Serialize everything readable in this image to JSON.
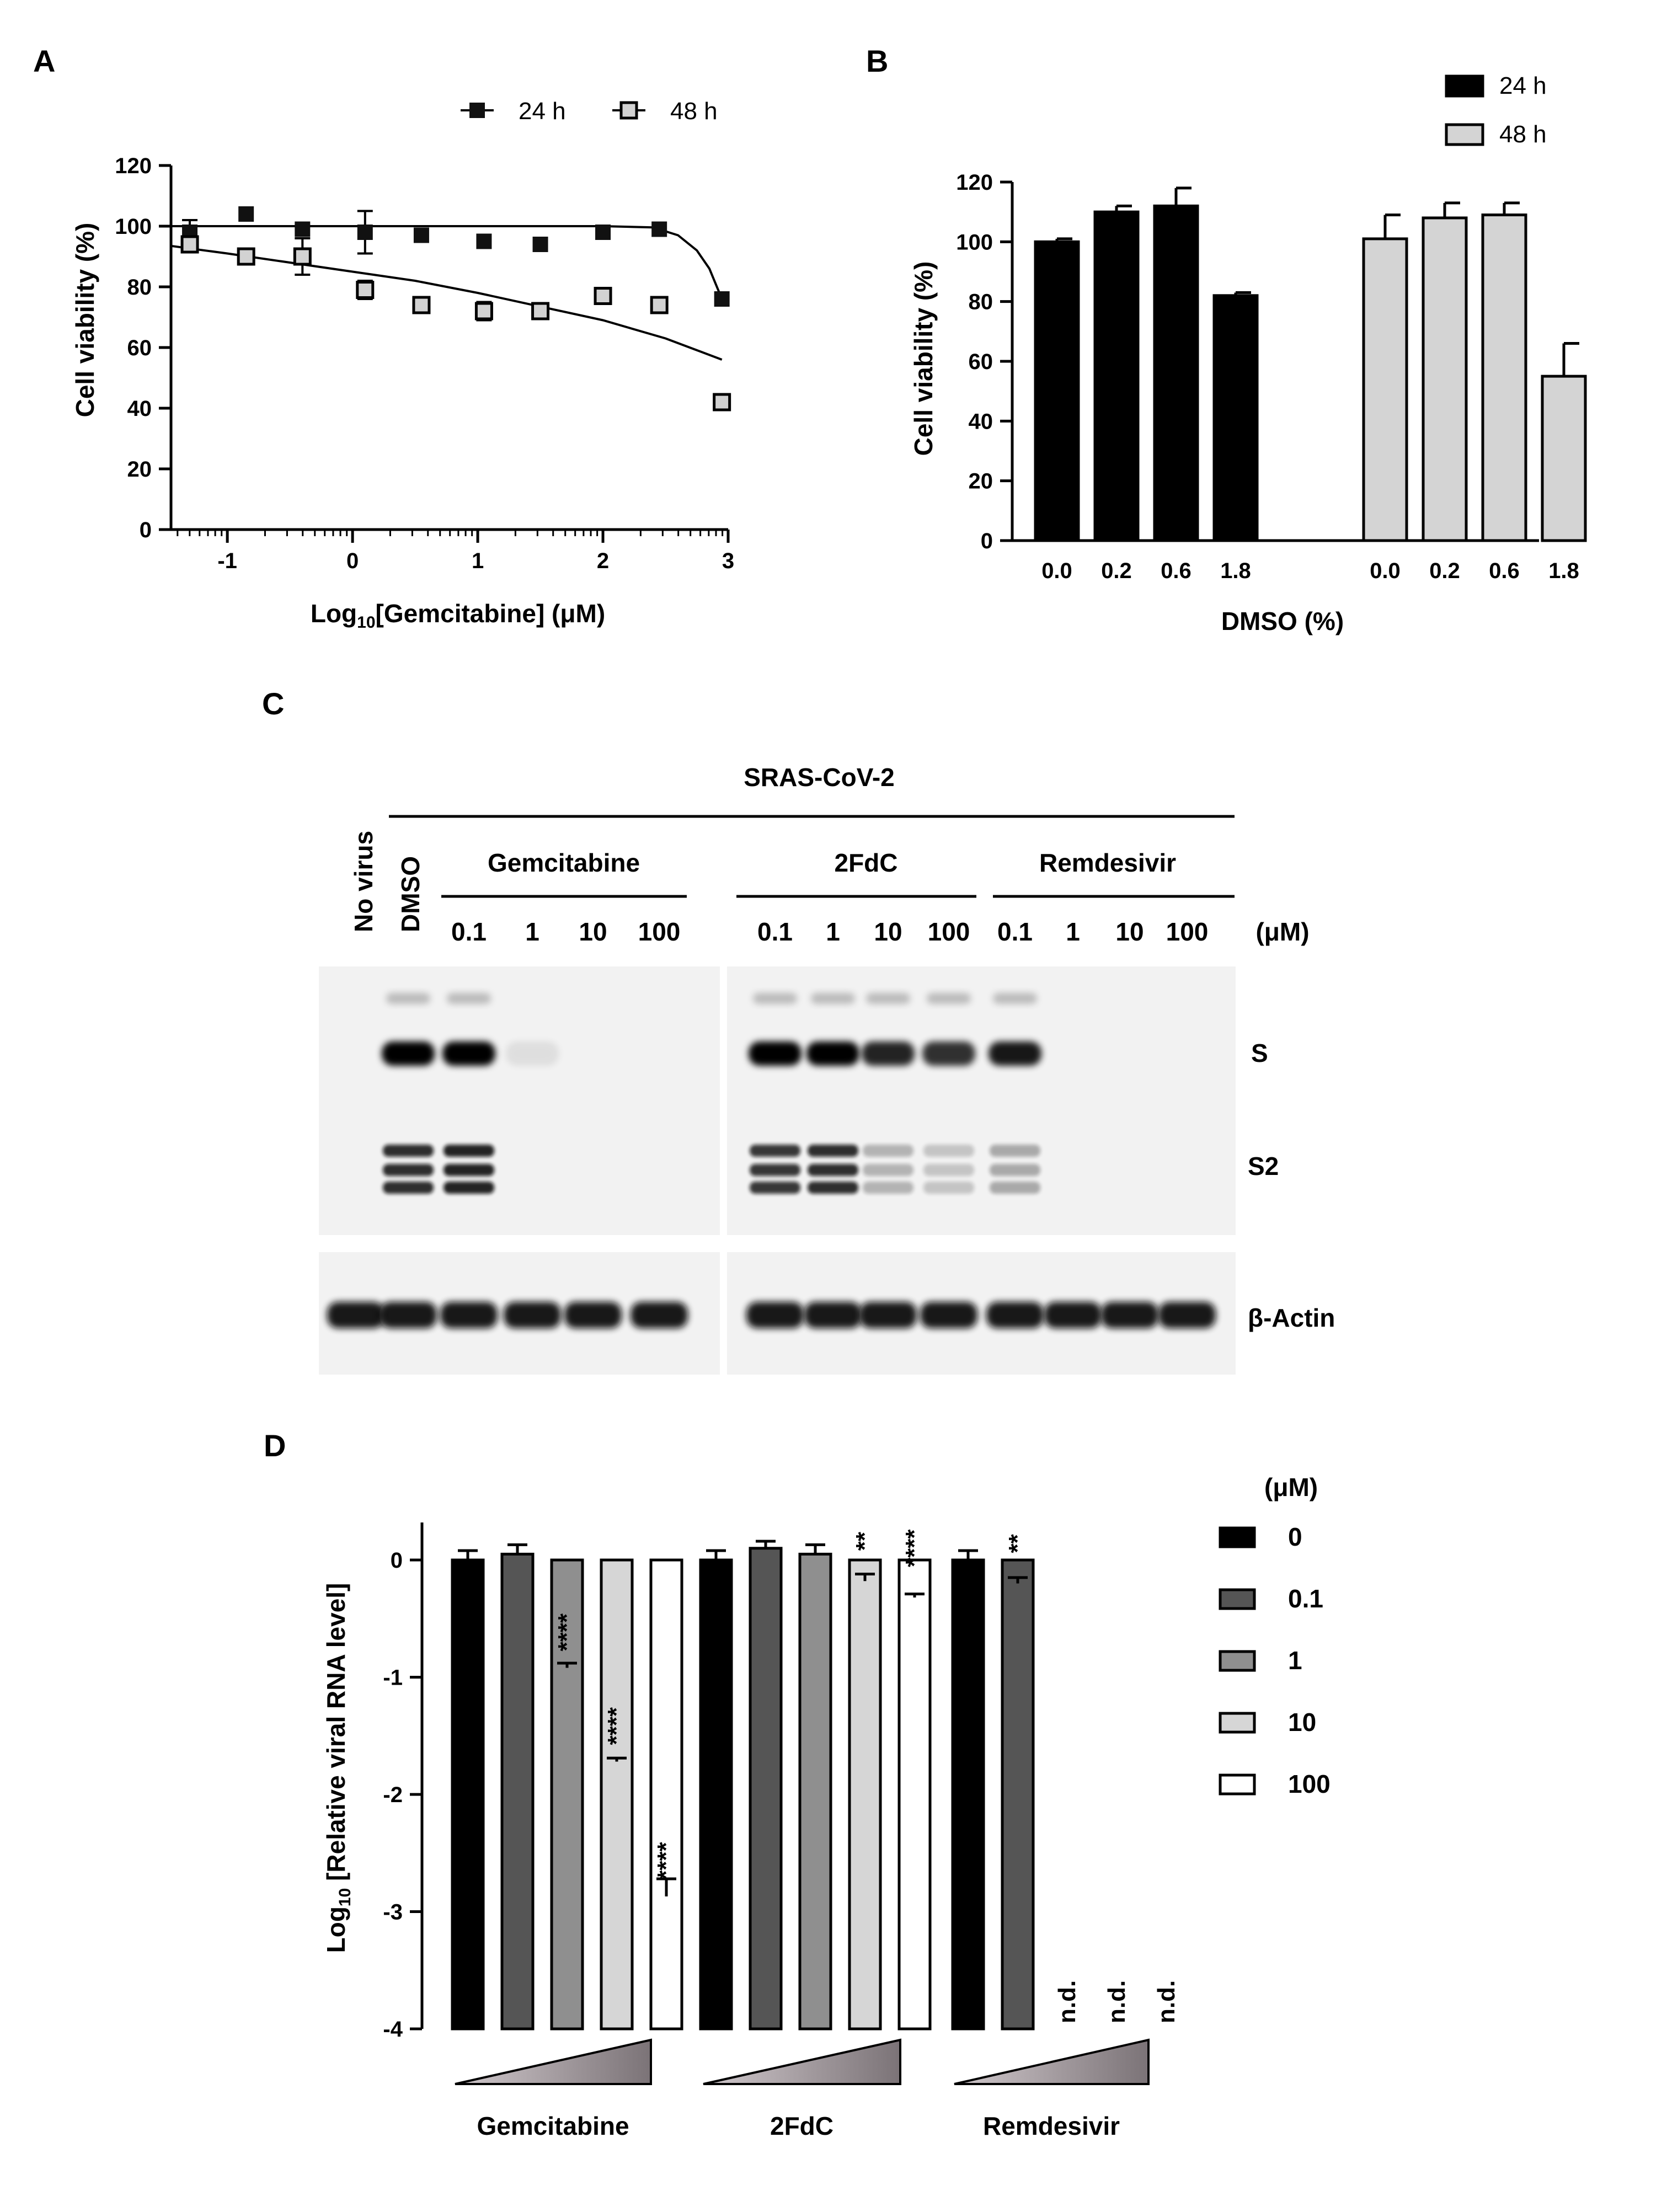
{
  "panels": {
    "A": {
      "letter": "A",
      "chart_data": {
        "type": "scatter",
        "xlabel_parts": [
          "Log",
          "10",
          "[Gemcitabine] (μM)"
        ],
        "ylabel": "Cell viability  (%)",
        "xlim": [
          -1.45,
          3.0
        ],
        "ylim": [
          0,
          120
        ],
        "xticks": [
          -1,
          0,
          1,
          2,
          3
        ],
        "yticks": [
          0,
          20,
          40,
          60,
          80,
          100,
          120
        ],
        "legend_position": "top",
        "series": [
          {
            "name": "24 h",
            "marker": "filled-square",
            "color": "#111111",
            "x": [
              -1.3,
              -0.85,
              -0.4,
              0.1,
              0.55,
              1.05,
              1.5,
              2.0,
              2.45,
              2.95
            ],
            "y": [
              98,
              104,
              99,
              98,
              97,
              95,
              94,
              98,
              99,
              76
            ],
            "err": [
              4,
              0,
              0,
              7,
              0,
              0,
              0,
              0,
              0,
              0
            ],
            "fit": [
              [
                -1.45,
                100
              ],
              [
                0,
                100
              ],
              [
                1,
                100
              ],
              [
                2,
                100
              ],
              [
                2.4,
                99.6
              ],
              [
                2.6,
                97
              ],
              [
                2.75,
                92
              ],
              [
                2.85,
                86
              ],
              [
                2.95,
                76
              ]
            ]
          },
          {
            "name": "48 h",
            "marker": "open-square",
            "color": "#d2d2d2",
            "x": [
              -1.3,
              -0.85,
              -0.4,
              0.1,
              0.55,
              1.05,
              1.5,
              2.0,
              2.45,
              2.95
            ],
            "y": [
              94,
              90,
              90,
              79,
              74,
              72,
              72,
              77,
              74,
              42
            ],
            "err": [
              2,
              0,
              6,
              3,
              0,
              3,
              0,
              0,
              0,
              0
            ],
            "fit": [
              [
                -1.45,
                93.5
              ],
              [
                -1,
                91
              ],
              [
                0,
                85
              ],
              [
                0.5,
                82
              ],
              [
                1,
                78
              ],
              [
                1.5,
                73.5
              ],
              [
                2,
                69
              ],
              [
                2.5,
                63
              ],
              [
                2.95,
                56
              ]
            ]
          }
        ]
      }
    },
    "B": {
      "letter": "B",
      "chart_data": {
        "type": "bar",
        "xlabel": "DMSO (%)",
        "ylabel": "Cell viability  (%)",
        "ylim": [
          0,
          120
        ],
        "yticks": [
          0,
          20,
          40,
          60,
          80,
          100,
          120
        ],
        "categories": [
          "0.0",
          "0.2",
          "0.6",
          "1.8"
        ],
        "legend_position": "top-right",
        "series": [
          {
            "name": "24 h",
            "color": "#000000",
            "values": [
              100,
              110,
              112,
              82
            ],
            "err": [
              1,
              2,
              6,
              1
            ]
          },
          {
            "name": "48 h",
            "color": "#d4d4d4",
            "values": [
              101,
              108,
              109,
              55
            ],
            "err": [
              8,
              5,
              4,
              11
            ]
          }
        ]
      }
    },
    "C": {
      "letter": "C",
      "virus_label": "SRAS-CoV-2",
      "lane_labels_rotated": [
        "No virus",
        "DMSO"
      ],
      "groups": [
        {
          "name": "Gemcitabine",
          "doses": [
            "0.1",
            "1",
            "10",
            "100"
          ]
        },
        {
          "name": "2FdC",
          "doses": [
            "0.1",
            "1",
            "10",
            "100"
          ]
        },
        {
          "name": "Remdesivir",
          "doses": [
            "0.1",
            "1",
            "10",
            "100"
          ]
        }
      ],
      "unit": "(μM)",
      "band_labels": [
        "S",
        "S2",
        "β-Actin"
      ],
      "lanes": [
        {
          "S": 0.0,
          "S2": 0.0,
          "actin": 1.0
        },
        {
          "S": 1.0,
          "S2": 0.95,
          "actin": 1.0
        },
        {
          "S": 1.0,
          "S2": 1.0,
          "actin": 1.0
        },
        {
          "S": 0.08,
          "S2": 0.0,
          "actin": 1.0
        },
        {
          "S": 0.0,
          "S2": 0.0,
          "actin": 1.0
        },
        {
          "S": 0.0,
          "S2": 0.0,
          "actin": 1.0
        },
        {
          "S": 1.0,
          "S2": 0.9,
          "actin": 1.0
        },
        {
          "S": 1.0,
          "S2": 0.95,
          "actin": 1.0
        },
        {
          "S": 0.85,
          "S2": 0.3,
          "actin": 1.0
        },
        {
          "S": 0.8,
          "S2": 0.22,
          "actin": 1.0
        },
        {
          "S": 0.9,
          "S2": 0.35,
          "actin": 1.0
        },
        {
          "S": 0.0,
          "S2": 0.0,
          "actin": 1.0
        },
        {
          "S": 0.0,
          "S2": 0.0,
          "actin": 1.0
        },
        {
          "S": 0.0,
          "S2": 0.0,
          "actin": 1.0
        }
      ]
    },
    "D": {
      "letter": "D",
      "chart_data": {
        "type": "bar",
        "ylabel_parts": [
          "Log",
          "10",
          " [Relative viral RNA level]"
        ],
        "ylim": [
          -4,
          0.2
        ],
        "yticks": [
          0,
          -1,
          -2,
          -3,
          -4
        ],
        "groups": [
          "Gemcitabine",
          "2FdC",
          "Remdesivir"
        ],
        "legend_title": "(μM)",
        "legend_position": "right",
        "series": [
          {
            "name": "0",
            "color": "#000000",
            "values": [
              0,
              0,
              0
            ],
            "err": [
              0.08,
              0.08,
              0.08
            ]
          },
          {
            "name": "0.1",
            "color": "#555555",
            "values": [
              0.05,
              0.1,
              -0.2
            ],
            "err": [
              0.08,
              0.06,
              0.05
            ]
          },
          {
            "name": "1",
            "color": "#8f8f8f",
            "values": [
              -0.92,
              0.05,
              null
            ],
            "err": [
              0.04,
              0.08,
              0
            ]
          },
          {
            "name": "10",
            "color": "#d6d6d6",
            "values": [
              -1.72,
              -0.18,
              null
            ],
            "err": [
              0.03,
              0.06,
              0
            ]
          },
          {
            "name": "100",
            "color": "#ffffff",
            "values": [
              -2.87,
              -0.32,
              null
            ],
            "err": [
              0.15,
              0.03,
              0
            ]
          }
        ],
        "significance": [
          [
            "",
            "",
            "****",
            "****",
            "****"
          ],
          [
            "",
            "",
            "",
            "**",
            "****"
          ],
          [
            "",
            "**",
            "n.d.",
            "n.d.",
            "n.d."
          ]
        ]
      }
    }
  }
}
